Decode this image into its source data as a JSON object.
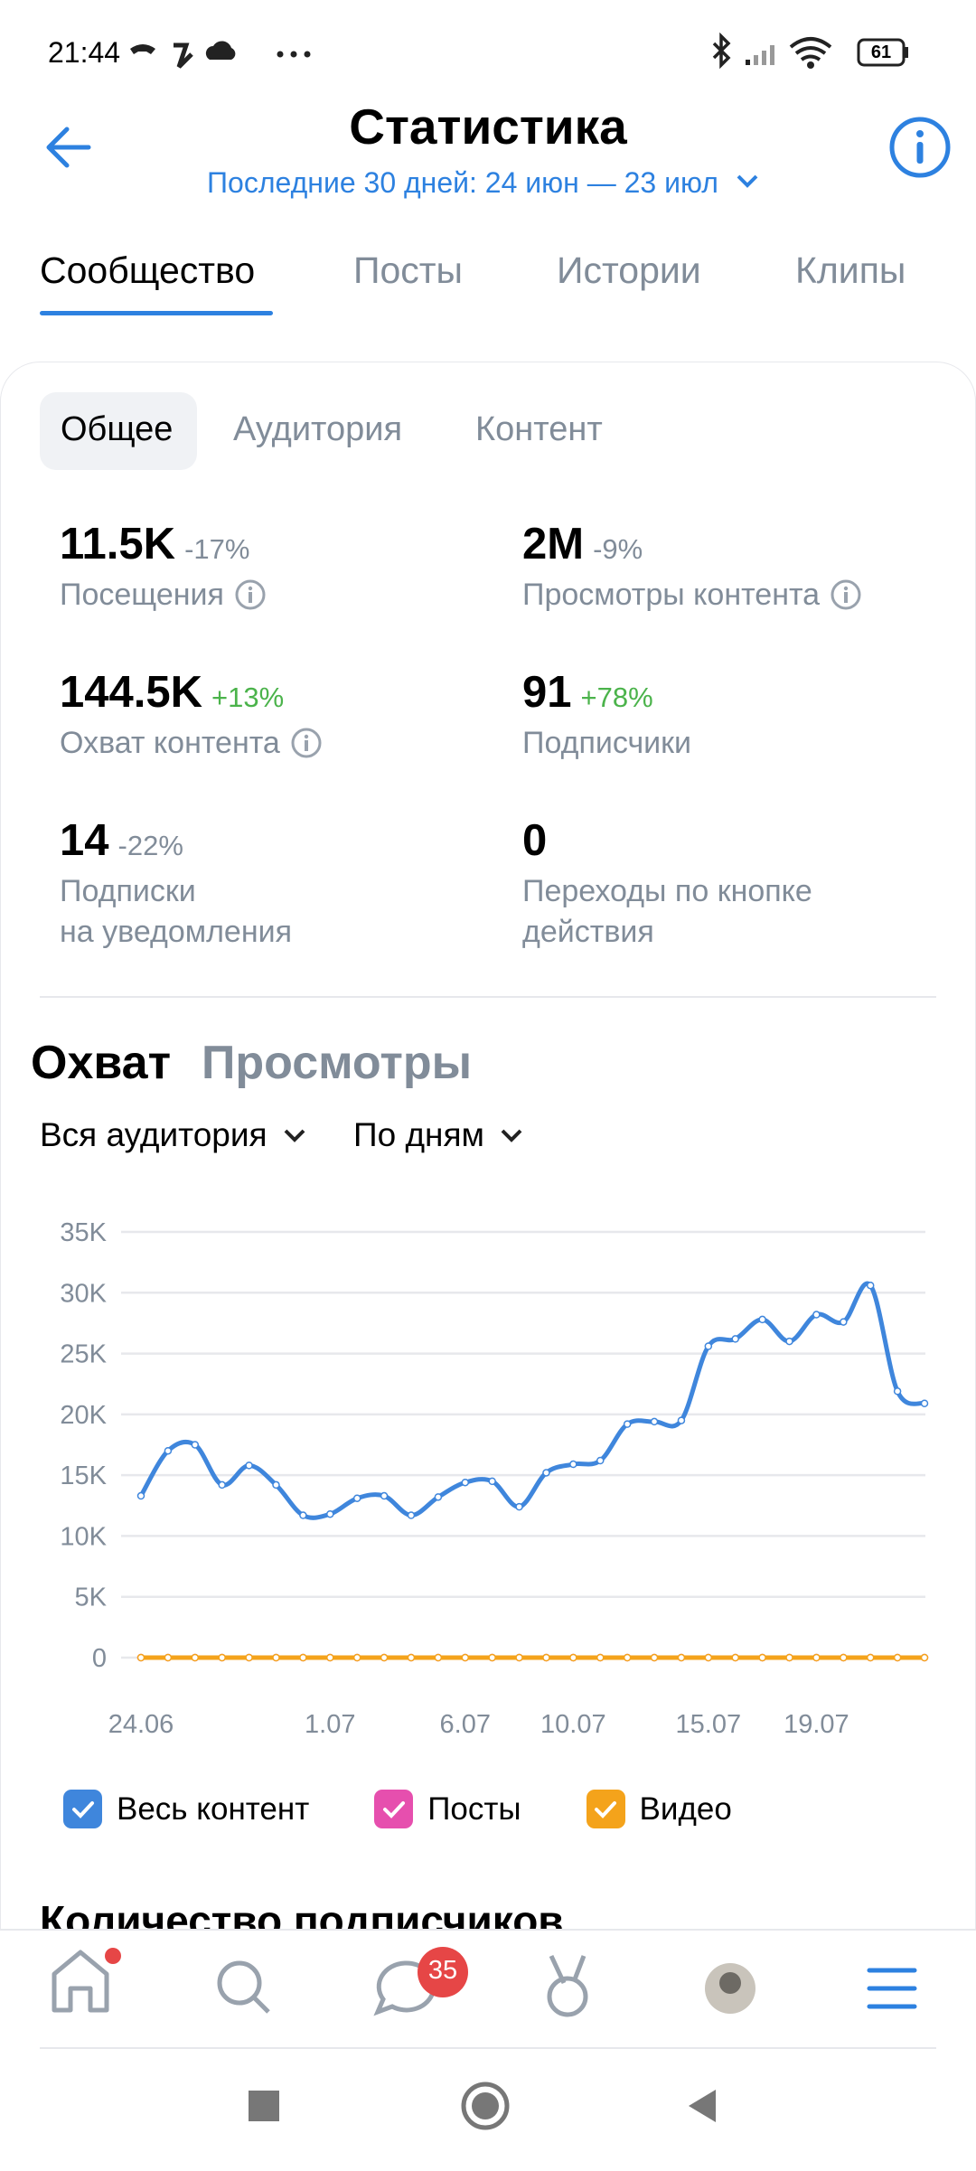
{
  "status_bar": {
    "time": "21:44",
    "battery": "61"
  },
  "header": {
    "title": "Статистика",
    "period": "Последние 30 дней: 24 июн — 23 июл"
  },
  "tabs": [
    "Сообщество",
    "Посты",
    "Истории",
    "Клипы"
  ],
  "subtabs": [
    "Общее",
    "Аудитория",
    "Контент"
  ],
  "stats": [
    {
      "value": "11.5K",
      "change": "-17%",
      "label": "Посещения"
    },
    {
      "value": "2M",
      "change": "-9%",
      "label": "Просмотры контента"
    },
    {
      "value": "144.5K",
      "change": "+13%",
      "label": "Охват контента"
    },
    {
      "value": "91",
      "change": "+78%",
      "label": "Подписчики"
    },
    {
      "value": "14",
      "change": "-22%",
      "label": "Подписки\nна уведомления"
    },
    {
      "value": "0",
      "label": "Переходы по кнопке\nдействия"
    }
  ],
  "chart": {
    "type": "line",
    "tabs": [
      "Охват",
      "Просмотры"
    ],
    "filters": [
      "Вся аудитория",
      "По дням"
    ],
    "categories": [
      "24.06",
      null,
      null,
      null,
      null,
      null,
      null,
      "1.07",
      null,
      null,
      null,
      null,
      "6.07",
      null,
      null,
      null,
      "10.07",
      null,
      null,
      null,
      null,
      "15.07",
      null,
      null,
      null,
      "19.07",
      null,
      null,
      null,
      null
    ],
    "ylim": [
      0,
      35000
    ],
    "yticks": [
      0,
      {
        "value": 5000,
        "label": "5K"
      },
      {
        "value": 10000,
        "label": "10K"
      },
      {
        "value": 15000,
        "label": "15K"
      },
      {
        "value": 20000,
        "label": "20K"
      },
      {
        "value": 25000,
        "label": "25K"
      },
      {
        "value": 30000,
        "label": "30K"
      },
      {
        "value": 35000,
        "label": "35K"
      }
    ],
    "grid": true,
    "series": [
      {
        "name": "Весь контент",
        "color": "#3f86dc",
        "values": [
          13300,
          17000,
          17500,
          14200,
          15800,
          14200,
          11700,
          11800,
          13100,
          13300,
          11700,
          13200,
          14400,
          14500,
          12400,
          15200,
          15900,
          16200,
          19200,
          19400,
          19500,
          25600,
          26200,
          27800,
          26000,
          28200,
          27600,
          30600,
          21900,
          20900
        ]
      },
      {
        "name": "Посты",
        "color": "#e64fae",
        "values": [
          0,
          0,
          0,
          0,
          0,
          0,
          0,
          0,
          0,
          0,
          0,
          0,
          0,
          0,
          0,
          0,
          0,
          0,
          0,
          0,
          0,
          0,
          0,
          0,
          0,
          0,
          0,
          0,
          0,
          0
        ]
      },
      {
        "name": "Видео",
        "color": "#f4a31b",
        "values": [
          0,
          0,
          0,
          0,
          0,
          0,
          0,
          0,
          0,
          0,
          0,
          0,
          0,
          0,
          0,
          0,
          0,
          0,
          0,
          0,
          0,
          0,
          0,
          0,
          0,
          0,
          0,
          0,
          0,
          0
        ]
      }
    ]
  },
  "next_section": "Количество подписчиков",
  "nav": {
    "messages_badge": "35"
  }
}
